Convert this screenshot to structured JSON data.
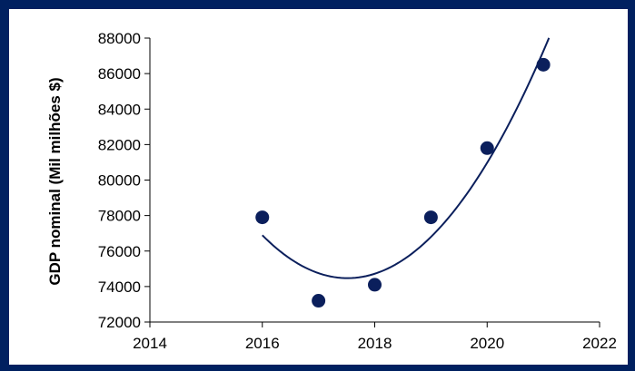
{
  "colors": {
    "frame": "#002060",
    "background": "#ffffff",
    "marker": "#0b1f5c",
    "trendline": "#0b1f5c",
    "axis": "#000000"
  },
  "chart_data": {
    "type": "scatter",
    "title": "",
    "xlabel": "",
    "ylabel": "GDP nominal (Mil milhões $)",
    "xlim": [
      2014,
      2022
    ],
    "ylim": [
      72000,
      88000
    ],
    "x_ticks": [
      2014,
      2016,
      2018,
      2020,
      2022
    ],
    "y_ticks": [
      72000,
      74000,
      76000,
      78000,
      80000,
      82000,
      84000,
      86000,
      88000
    ],
    "grid": false,
    "legend": "none",
    "series": [
      {
        "x": [
          2016,
          2017,
          2018,
          2019,
          2020,
          2021
        ],
        "y": [
          77900,
          73200,
          74100,
          77900,
          81800,
          86500
        ]
      }
    ],
    "trendline": {
      "type": "polynomial",
      "order": 2,
      "x_range": [
        2016,
        2021.1
      ]
    }
  }
}
